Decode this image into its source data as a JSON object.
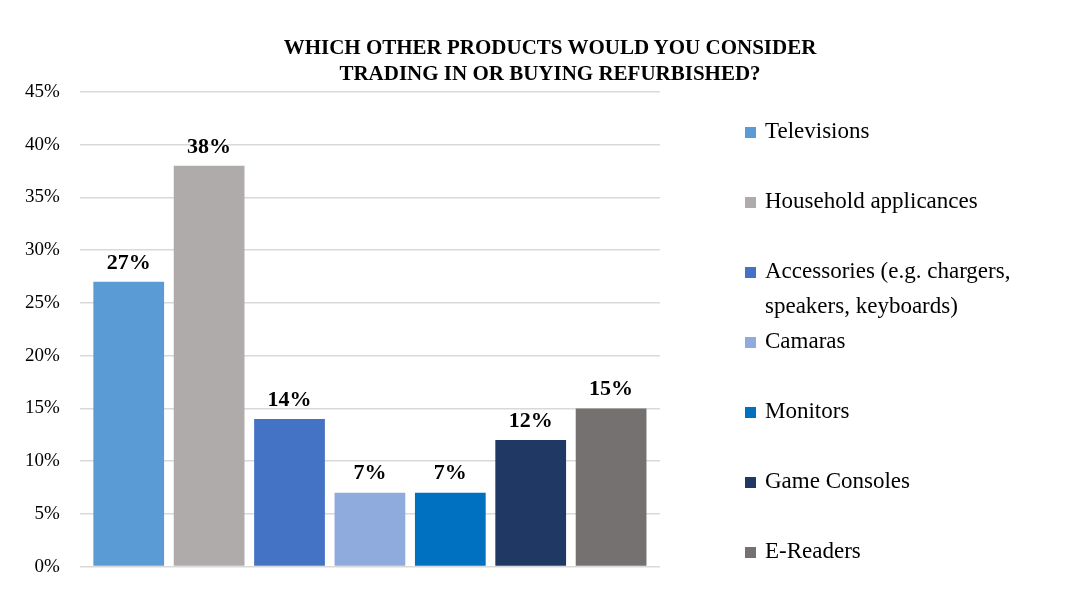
{
  "chart_data": {
    "type": "bar",
    "title": "WHICH OTHER PRODUCTS WOULD YOU CONSIDER TRADING IN OR BUYING REFURBISHED?",
    "categories": [
      null
    ],
    "series": [
      {
        "name": "Televisions",
        "color": "#5b9bd5",
        "values": [
          27
        ],
        "value_labels": [
          "27%"
        ]
      },
      {
        "name": "Household applicances",
        "color": "#afabab",
        "values": [
          38
        ],
        "value_labels": [
          "38%"
        ]
      },
      {
        "name": "Accessories (e.g. chargers, speakers, keyboards)",
        "color": "#4472c4",
        "values": [
          14
        ],
        "value_labels": [
          "14%"
        ]
      },
      {
        "name": "Camaras",
        "color": "#8faadc",
        "values": [
          7
        ],
        "value_labels": [
          "7%"
        ]
      },
      {
        "name": "Monitors",
        "color": "#0070c0",
        "values": [
          7
        ],
        "value_labels": [
          "7%"
        ]
      },
      {
        "name": "Game Consoles",
        "color": "#203864",
        "values": [
          12
        ],
        "value_labels": [
          "12%"
        ]
      },
      {
        "name": "E-Readers",
        "color": "#767171",
        "values": [
          15
        ],
        "value_labels": [
          "15%"
        ]
      }
    ],
    "ylim": [
      0,
      45
    ],
    "yticks": [
      {
        "value": 0,
        "label": "0%"
      },
      {
        "value": 5,
        "label": "5%"
      },
      {
        "value": 10,
        "label": "10%"
      },
      {
        "value": 15,
        "label": "15%"
      },
      {
        "value": 20,
        "label": "20%"
      },
      {
        "value": 25,
        "label": "25%"
      },
      {
        "value": 30,
        "label": "30%"
      },
      {
        "value": 35,
        "label": "35%"
      },
      {
        "value": 40,
        "label": "40%"
      },
      {
        "value": 45,
        "label": "45%"
      }
    ],
    "grid": "y",
    "legend": "right"
  }
}
